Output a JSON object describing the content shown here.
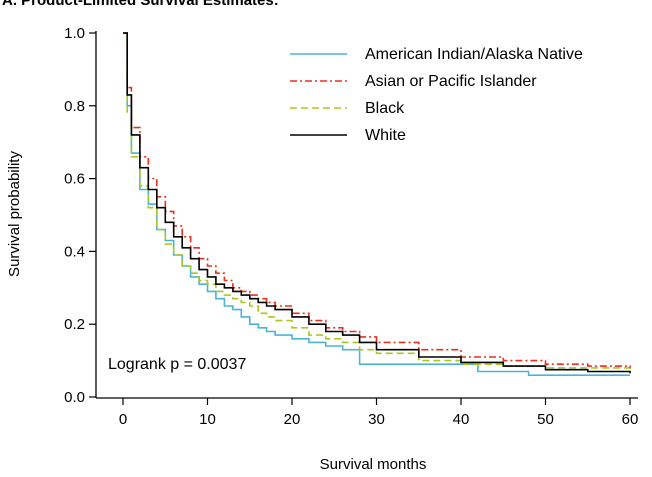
{
  "chart_data": {
    "type": "line",
    "title": "A. Product-Limited Survival Estimates:",
    "xlabel": "Survival months",
    "ylabel": "Survival probability",
    "xlim": [
      0,
      60
    ],
    "ylim": [
      0,
      1.0
    ],
    "x_ticks": [
      "0",
      "10",
      "20",
      "30",
      "40",
      "50",
      "60"
    ],
    "y_ticks": [
      "0.0",
      "0.2",
      "0.4",
      "0.6",
      "0.8",
      "1.0"
    ],
    "grid": false,
    "legend_position": "top-right",
    "annotation": "Logrank p = 0.0037",
    "series": [
      {
        "name": "American Indian/Alaska Native",
        "color": "#4db3d6",
        "dash": "solid",
        "x": [
          0,
          0.5,
          1,
          2,
          3,
          4,
          5,
          6,
          7,
          8,
          9,
          10,
          11,
          12,
          13,
          14,
          15,
          16,
          17,
          18,
          20,
          22,
          24,
          26,
          28,
          30,
          35,
          42,
          48,
          60
        ],
        "y": [
          1.0,
          0.8,
          0.67,
          0.57,
          0.53,
          0.46,
          0.43,
          0.39,
          0.36,
          0.33,
          0.31,
          0.29,
          0.27,
          0.25,
          0.24,
          0.22,
          0.2,
          0.19,
          0.18,
          0.17,
          0.16,
          0.15,
          0.14,
          0.13,
          0.09,
          0.09,
          0.09,
          0.07,
          0.06,
          0.06
        ]
      },
      {
        "name": "Asian or Pacific Islander",
        "color": "#e8311e",
        "dash": "dashdot",
        "x": [
          0,
          0.5,
          1,
          2,
          3,
          4,
          5,
          6,
          7,
          8,
          9,
          10,
          11,
          12,
          13,
          14,
          15,
          16,
          17,
          18,
          20,
          22,
          24,
          26,
          28,
          30,
          35,
          40,
          45,
          50,
          55,
          60
        ],
        "y": [
          1.0,
          0.85,
          0.74,
          0.66,
          0.6,
          0.55,
          0.51,
          0.47,
          0.44,
          0.41,
          0.38,
          0.36,
          0.34,
          0.32,
          0.3,
          0.29,
          0.28,
          0.27,
          0.26,
          0.25,
          0.23,
          0.21,
          0.19,
          0.18,
          0.165,
          0.15,
          0.13,
          0.11,
          0.1,
          0.09,
          0.085,
          0.08
        ]
      },
      {
        "name": "Black",
        "color": "#a8c81e",
        "dash": "dashed",
        "x": [
          0,
          0.5,
          1,
          2,
          3,
          4,
          5,
          6,
          7,
          8,
          9,
          10,
          11,
          12,
          13,
          14,
          15,
          16,
          17,
          18,
          20,
          22,
          24,
          26,
          28,
          30,
          35,
          40,
          45,
          50,
          60
        ],
        "y": [
          1.0,
          0.78,
          0.66,
          0.58,
          0.52,
          0.46,
          0.42,
          0.39,
          0.36,
          0.34,
          0.32,
          0.31,
          0.29,
          0.28,
          0.27,
          0.26,
          0.25,
          0.23,
          0.22,
          0.21,
          0.19,
          0.17,
          0.16,
          0.15,
          0.13,
          0.12,
          0.1,
          0.09,
          0.085,
          0.08,
          0.075
        ]
      },
      {
        "name": "White",
        "color": "#000000",
        "dash": "solid",
        "x": [
          0,
          0.5,
          1,
          2,
          3,
          4,
          5,
          6,
          7,
          8,
          9,
          10,
          11,
          12,
          13,
          14,
          15,
          16,
          17,
          18,
          20,
          22,
          24,
          26,
          28,
          30,
          35,
          40,
          45,
          50,
          55,
          60
        ],
        "y": [
          1.0,
          0.83,
          0.72,
          0.63,
          0.57,
          0.52,
          0.48,
          0.44,
          0.41,
          0.38,
          0.35,
          0.33,
          0.31,
          0.3,
          0.29,
          0.28,
          0.27,
          0.26,
          0.25,
          0.24,
          0.22,
          0.2,
          0.18,
          0.17,
          0.15,
          0.13,
          0.11,
          0.095,
          0.085,
          0.075,
          0.07,
          0.065
        ]
      }
    ]
  }
}
